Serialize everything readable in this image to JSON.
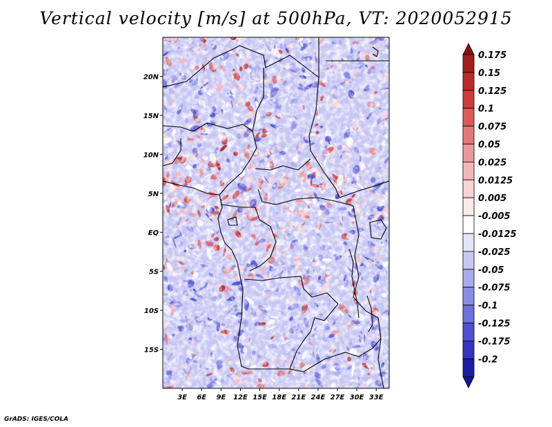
{
  "title": "Vertical velocity [m/s] at 500hPa, VT: 2020052915",
  "credit": "GrADS: IGES/COLA",
  "map": {
    "lat_range": [
      -20,
      25
    ],
    "lon_range": [
      0,
      35
    ],
    "lat_ticks": [
      {
        "value": 20,
        "label": "20N"
      },
      {
        "value": 15,
        "label": "15N"
      },
      {
        "value": 10,
        "label": "10N"
      },
      {
        "value": 5,
        "label": "5N"
      },
      {
        "value": 0,
        "label": "EQ"
      },
      {
        "value": -5,
        "label": "5S"
      },
      {
        "value": -10,
        "label": "10S"
      },
      {
        "value": -15,
        "label": "15S"
      }
    ],
    "lon_ticks": [
      {
        "value": 3,
        "label": "3E"
      },
      {
        "value": 6,
        "label": "6E"
      },
      {
        "value": 9,
        "label": "9E"
      },
      {
        "value": 12,
        "label": "12E"
      },
      {
        "value": 15,
        "label": "15E"
      },
      {
        "value": 18,
        "label": "18E"
      },
      {
        "value": 21,
        "label": "21E"
      },
      {
        "value": 24,
        "label": "24E"
      },
      {
        "value": 27,
        "label": "27E"
      },
      {
        "value": 30,
        "label": "30E"
      },
      {
        "value": 33,
        "label": "33E"
      }
    ]
  },
  "colorbar": {
    "levels": [
      {
        "label": "0.175",
        "color": "#a51c1c"
      },
      {
        "label": "0.15",
        "color": "#bd2a2a"
      },
      {
        "label": "0.125",
        "color": "#d03c3c"
      },
      {
        "label": "0.1",
        "color": "#de5a5a"
      },
      {
        "label": "0.075",
        "color": "#e47878"
      },
      {
        "label": "0.05",
        "color": "#ec9898"
      },
      {
        "label": "0.025",
        "color": "#f2b8b8"
      },
      {
        "label": "0.0125",
        "color": "#f8d4d4"
      },
      {
        "label": "0.005",
        "color": "#fceaea"
      },
      {
        "label": "-0.005",
        "color": "#ffffff"
      },
      {
        "label": "-0.0125",
        "color": "#e4e4fa"
      },
      {
        "label": "-0.025",
        "color": "#c8c8f6"
      },
      {
        "label": "-0.05",
        "color": "#aaaaf0"
      },
      {
        "label": "-0.075",
        "color": "#8c8ce8"
      },
      {
        "label": "-0.1",
        "color": "#6e6ee0"
      },
      {
        "label": "-0.125",
        "color": "#5050d2"
      },
      {
        "label": "-0.175",
        "color": "#3434c0"
      },
      {
        "label": "-0.2",
        "color": "#1c1ca6"
      }
    ],
    "top_cap_color": "#8a1010",
    "bottom_cap_color": "#14149a"
  },
  "colors": {
    "ocean_blue": "#9a9aea",
    "land_red": "#e07070",
    "neutral": "#ffffff"
  }
}
